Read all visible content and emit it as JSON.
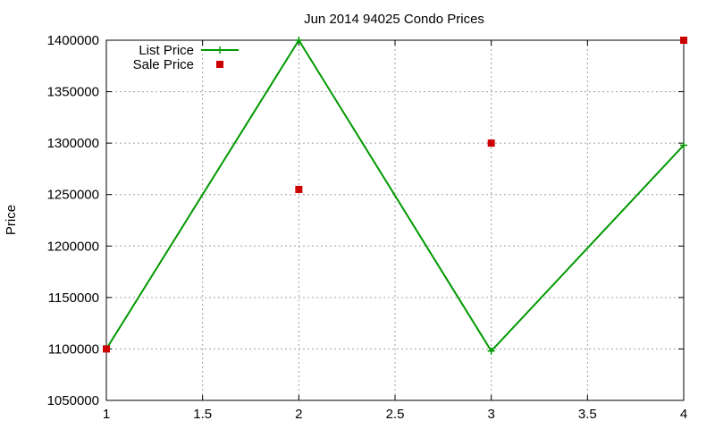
{
  "chart_data": {
    "type": "line",
    "title": "Jun 2014 94025 Condo Prices",
    "xlabel": "",
    "ylabel": "Price",
    "xlim": [
      1,
      4
    ],
    "ylim": [
      1050000,
      1400000
    ],
    "xticks": [
      1,
      1.5,
      2,
      2.5,
      3,
      3.5,
      4
    ],
    "xtick_labels": [
      "1",
      "1.5",
      "2",
      "2.5",
      "3",
      "3.5",
      "4"
    ],
    "yticks": [
      1050000,
      1100000,
      1150000,
      1200000,
      1250000,
      1300000,
      1350000,
      1400000
    ],
    "ytick_labels": [
      "1050000",
      "1100000",
      "1150000",
      "1200000",
      "1250000",
      "1300000",
      "1350000",
      "1400000"
    ],
    "grid": true,
    "legend_position": "top-left",
    "series": [
      {
        "name": "List Price",
        "type": "line",
        "marker": "plus",
        "color": "#009900",
        "x": [
          1,
          2,
          3,
          4
        ],
        "y": [
          1100000,
          1400000,
          1098000,
          1298000
        ]
      },
      {
        "name": "Sale Price",
        "type": "scatter",
        "marker": "square",
        "color": "#cc0000",
        "x": [
          1,
          2,
          3,
          4
        ],
        "y": [
          1100000,
          1255000,
          1300000,
          1400000
        ]
      }
    ]
  }
}
